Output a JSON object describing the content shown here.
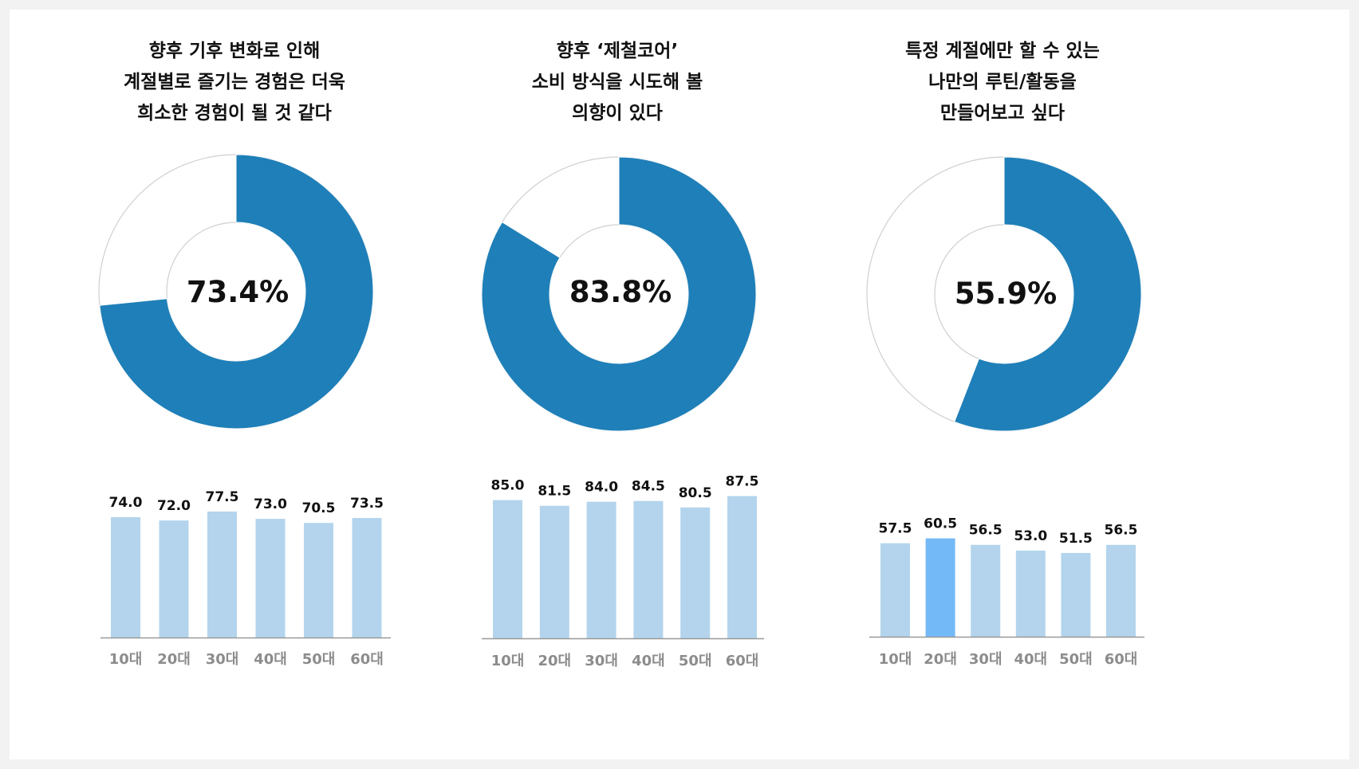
{
  "colors": {
    "donut_fill": "#1f7fb8",
    "donut_empty": "#ffffff",
    "donut_stroke": "#d0d0d0",
    "bar": "#b3d4ec",
    "bar_highlight": "#74b9f7",
    "axis": "#999999"
  },
  "chart_data": [
    {
      "type": "pie",
      "title": [
        "향후 기후 변화로 인해",
        "계절별로 즐기는 경험은 더욱",
        "희소한 경험이 될 것 같다"
      ],
      "value": 73.4,
      "value_label": "73.4%",
      "bars": {
        "type": "bar",
        "categories": [
          "10대",
          "20대",
          "30대",
          "40대",
          "50대",
          "60대"
        ],
        "values": [
          74.0,
          72.0,
          77.5,
          73.0,
          70.5,
          73.5
        ],
        "labels": [
          "74.0",
          "72.0",
          "77.5",
          "73.0",
          "70.5",
          "73.5"
        ],
        "highlight": -1
      }
    },
    {
      "type": "pie",
      "title": [
        "향후 ‘제철코어’",
        "소비 방식을 시도해 볼",
        "의향이 있다"
      ],
      "value": 83.8,
      "value_label": "83.8%",
      "bars": {
        "type": "bar",
        "categories": [
          "10대",
          "20대",
          "30대",
          "40대",
          "50대",
          "60대"
        ],
        "values": [
          85.0,
          81.5,
          84.0,
          84.5,
          80.5,
          87.5
        ],
        "labels": [
          "85.0",
          "81.5",
          "84.0",
          "84.5",
          "80.5",
          "87.5"
        ],
        "highlight": -1
      }
    },
    {
      "type": "pie",
      "title": [
        "특정 계절에만 할 수 있는",
        "나만의 루틴/활동을",
        "만들어보고 싶다"
      ],
      "value": 55.9,
      "value_label": "55.9%",
      "bars": {
        "type": "bar",
        "categories": [
          "10대",
          "20대",
          "30대",
          "40대",
          "50대",
          "60대"
        ],
        "values": [
          57.5,
          60.5,
          56.5,
          53.0,
          51.5,
          56.5
        ],
        "labels": [
          "57.5",
          "60.5",
          "56.5",
          "53.0",
          "51.5",
          "56.5"
        ],
        "highlight": 1
      }
    }
  ]
}
